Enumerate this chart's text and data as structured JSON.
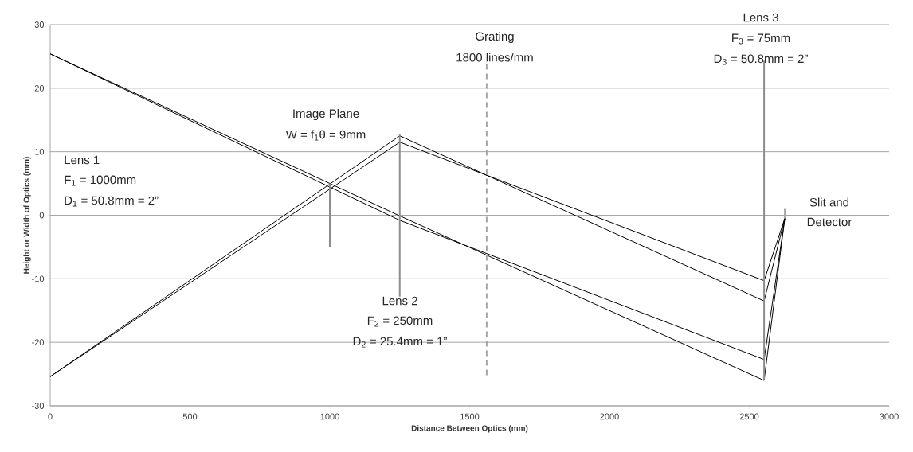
{
  "chart_data": {
    "type": "line",
    "xlabel": "Distance Between Optics (mm)",
    "ylabel": "Height or Width of Optics (mm)",
    "xlim": [
      0,
      3000
    ],
    "ylim": [
      -30,
      30
    ],
    "xticks": [
      0,
      500,
      1000,
      1500,
      2000,
      2500,
      3000
    ],
    "yticks": [
      -30,
      -20,
      -10,
      0,
      10,
      20,
      30
    ],
    "grid": "y",
    "marker": "none",
    "series": [
      {
        "color": "#000000",
        "x": [
          0,
          1250,
          2553,
          2627
        ],
        "values": [
          25.4,
          -0.1,
          -26,
          -0.5
        ]
      },
      {
        "color": "#000000",
        "x": [
          0,
          1250,
          2553,
          2627
        ],
        "values": [
          25.4,
          -0.8,
          -22.7,
          -0.5
        ]
      },
      {
        "color": "#000000",
        "x": [
          0,
          1250,
          2553,
          2627
        ],
        "values": [
          -25.4,
          12.5,
          -13.5,
          -0.5
        ]
      },
      {
        "color": "#000000",
        "x": [
          0,
          1250,
          2553,
          2627
        ],
        "values": [
          -25.4,
          11.5,
          -10.3,
          -0.5
        ]
      },
      {
        "color": "#8c8c8c",
        "x": [
          1000,
          1000
        ],
        "values": [
          5,
          -5
        ]
      },
      {
        "color": "#8c8c8c",
        "x": [
          1250,
          1250
        ],
        "values": [
          12.7,
          -12.8
        ]
      },
      {
        "color": "#a6a6a6",
        "x": [
          1561,
          1561
        ],
        "values": [
          23.8,
          -25.2
        ],
        "line_style": "dashed"
      },
      {
        "color": "#8c8c8c",
        "x": [
          2553,
          2553
        ],
        "values": [
          24.3,
          -26
        ]
      },
      {
        "color": "#a6a6a6",
        "x": [
          2627,
          2627
        ],
        "values": [
          1,
          -0.5
        ]
      }
    ],
    "annotations": [
      "Lens 1",
      "F$_{1}$ = 1000mm",
      "D$_{1}$ = 50.8mm = 2”",
      "Image Plane",
      "W = f$_{1}$θ = 9mm",
      "Lens 2",
      "F$_{2}$ = 250mm",
      "D$_{2}$ = 25.4mm = 1”",
      "Grating",
      "1800 lines/mm",
      "Lens 3",
      "F$_{3}$ = 75mm",
      "D$_{3}$ = 50.8mm = 2”",
      "Slit and",
      "Detector"
    ]
  }
}
